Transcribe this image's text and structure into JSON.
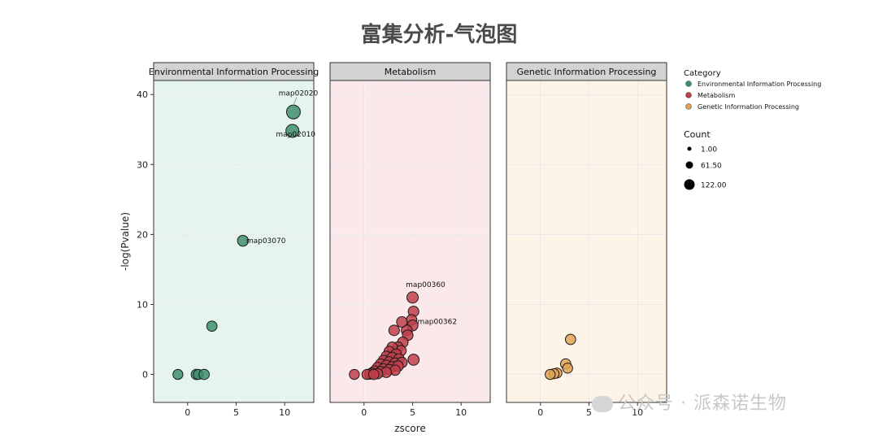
{
  "title": "富集分析-气泡图",
  "watermark": "公众号 · 派森诺生物",
  "chart_data": {
    "type": "scatter",
    "xlabel": "zscore",
    "ylabel": "-log(Pvalue)",
    "xlim": [
      -3.5,
      13
    ],
    "ylim": [
      -4,
      42
    ],
    "x_ticks": [
      0,
      5,
      10
    ],
    "y_ticks": [
      0,
      10,
      20,
      30,
      40
    ],
    "grid": true,
    "legend_placement": "right",
    "legend": {
      "category_title": "Category",
      "count_title": "Count",
      "count_levels": [
        1.0,
        61.5,
        122.0
      ],
      "count_labels": [
        "1.00",
        "61.50",
        "122.00"
      ]
    },
    "facets": [
      {
        "name": "Environmental Information Processing",
        "color": "#3e8f6e",
        "bg": "#e6f4ee",
        "points": [
          {
            "x": 10.9,
            "y": 37.5,
            "count": 120,
            "label": "map02020"
          },
          {
            "x": 10.8,
            "y": 34.8,
            "count": 100,
            "label": "map02010"
          },
          {
            "x": 5.7,
            "y": 19.1,
            "count": 50,
            "label": "map03070"
          },
          {
            "x": 2.5,
            "y": 6.9,
            "count": 40
          },
          {
            "x": -1.0,
            "y": 0.0,
            "count": 35
          },
          {
            "x": 0.9,
            "y": 0.0,
            "count": 40
          },
          {
            "x": 1.1,
            "y": 0.0,
            "count": 35
          },
          {
            "x": 1.7,
            "y": 0.0,
            "count": 40
          }
        ]
      },
      {
        "name": "Metabolism",
        "color": "#c0404a",
        "bg": "#fbe8ea",
        "points": [
          {
            "x": 5.0,
            "y": 11.0,
            "count": 60,
            "label": "map00360"
          },
          {
            "x": 5.1,
            "y": 9.0,
            "count": 45
          },
          {
            "x": 4.9,
            "y": 7.8,
            "count": 45
          },
          {
            "x": 5.0,
            "y": 7.0,
            "count": 50,
            "label": "map00362"
          },
          {
            "x": 4.4,
            "y": 6.3,
            "count": 50
          },
          {
            "x": 4.5,
            "y": 5.6,
            "count": 45
          },
          {
            "x": 3.9,
            "y": 7.5,
            "count": 45
          },
          {
            "x": 3.1,
            "y": 6.3,
            "count": 45
          },
          {
            "x": 4.0,
            "y": 4.6,
            "count": 45
          },
          {
            "x": 3.5,
            "y": 3.9,
            "count": 45
          },
          {
            "x": 3.8,
            "y": 3.4,
            "count": 45
          },
          {
            "x": 2.9,
            "y": 3.9,
            "count": 40
          },
          {
            "x": 2.6,
            "y": 3.3,
            "count": 40
          },
          {
            "x": 3.3,
            "y": 2.9,
            "count": 45
          },
          {
            "x": 5.1,
            "y": 2.1,
            "count": 55
          },
          {
            "x": 2.3,
            "y": 2.6,
            "count": 40
          },
          {
            "x": 2.9,
            "y": 2.4,
            "count": 45
          },
          {
            "x": 3.6,
            "y": 2.2,
            "count": 45
          },
          {
            "x": 2.0,
            "y": 2.0,
            "count": 40
          },
          {
            "x": 2.6,
            "y": 1.8,
            "count": 40
          },
          {
            "x": 3.2,
            "y": 1.6,
            "count": 45
          },
          {
            "x": 3.9,
            "y": 1.7,
            "count": 45
          },
          {
            "x": 1.7,
            "y": 1.5,
            "count": 40
          },
          {
            "x": 2.3,
            "y": 1.3,
            "count": 40
          },
          {
            "x": 2.9,
            "y": 1.1,
            "count": 40
          },
          {
            "x": 3.5,
            "y": 1.2,
            "count": 45
          },
          {
            "x": 1.4,
            "y": 1.0,
            "count": 40
          },
          {
            "x": 2.0,
            "y": 0.8,
            "count": 40
          },
          {
            "x": 2.6,
            "y": 0.7,
            "count": 40
          },
          {
            "x": 3.2,
            "y": 0.6,
            "count": 40
          },
          {
            "x": 1.1,
            "y": 0.5,
            "count": 40
          },
          {
            "x": 1.7,
            "y": 0.4,
            "count": 40
          },
          {
            "x": 2.3,
            "y": 0.3,
            "count": 40
          },
          {
            "x": 0.8,
            "y": 0.2,
            "count": 40
          },
          {
            "x": 1.4,
            "y": 0.1,
            "count": 40
          },
          {
            "x": 0.6,
            "y": 0.05,
            "count": 40
          },
          {
            "x": 0.3,
            "y": 0.0,
            "count": 35
          },
          {
            "x": 1.0,
            "y": 0.0,
            "count": 40
          },
          {
            "x": -1.0,
            "y": 0.0,
            "count": 35
          }
        ]
      },
      {
        "name": "Genetic Information Processing",
        "color": "#e2a255",
        "bg": "#fdf3e6",
        "points": [
          {
            "x": 3.1,
            "y": 5.0,
            "count": 40
          },
          {
            "x": 2.6,
            "y": 1.5,
            "count": 40
          },
          {
            "x": 2.8,
            "y": 0.9,
            "count": 35
          },
          {
            "x": 1.7,
            "y": 0.2,
            "count": 35
          },
          {
            "x": 1.4,
            "y": 0.1,
            "count": 35
          },
          {
            "x": 1.0,
            "y": 0.0,
            "count": 35
          }
        ]
      }
    ]
  }
}
